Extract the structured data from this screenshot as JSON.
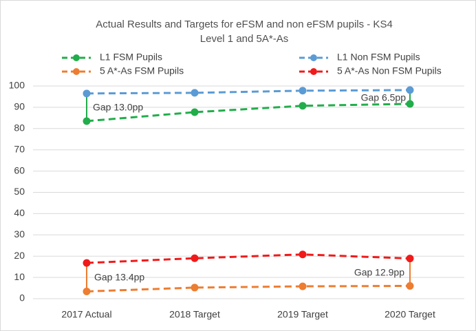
{
  "chart_data": {
    "type": "line",
    "title_lines": [
      "Actual Results and Targets for eFSM and non eFSM pupils - KS4",
      "Level 1 and 5A*-As"
    ],
    "categories": [
      "2017 Actual",
      "2018 Target",
      "2019 Target",
      "2020 Target"
    ],
    "series": [
      {
        "name": "L1 FSM Pupils",
        "color": "#22ad4b",
        "values": [
          83.5,
          87.7,
          90.7,
          91.6
        ]
      },
      {
        "name": "L1 Non FSM Pupils",
        "color": "#5b9bd5",
        "values": [
          96.5,
          96.8,
          97.8,
          98.1
        ]
      },
      {
        "name": "5 A*-As FSM Pupils",
        "color": "#ed7d31",
        "values": [
          3.4,
          5.2,
          5.8,
          6.0
        ]
      },
      {
        "name": "5 A*-As Non FSM Pupils",
        "color": "#f01a1a",
        "values": [
          16.8,
          19.0,
          20.8,
          18.9
        ]
      }
    ],
    "annotations": [
      "Gap 13.0pp",
      "Gap 6.5pp",
      "Gap 13.4pp",
      "Gap 12.9pp"
    ],
    "ylim": [
      0,
      100
    ],
    "yticks": [
      0,
      10,
      20,
      30,
      40,
      50,
      60,
      70,
      80,
      90,
      100
    ],
    "grid": true,
    "legend": "top"
  }
}
